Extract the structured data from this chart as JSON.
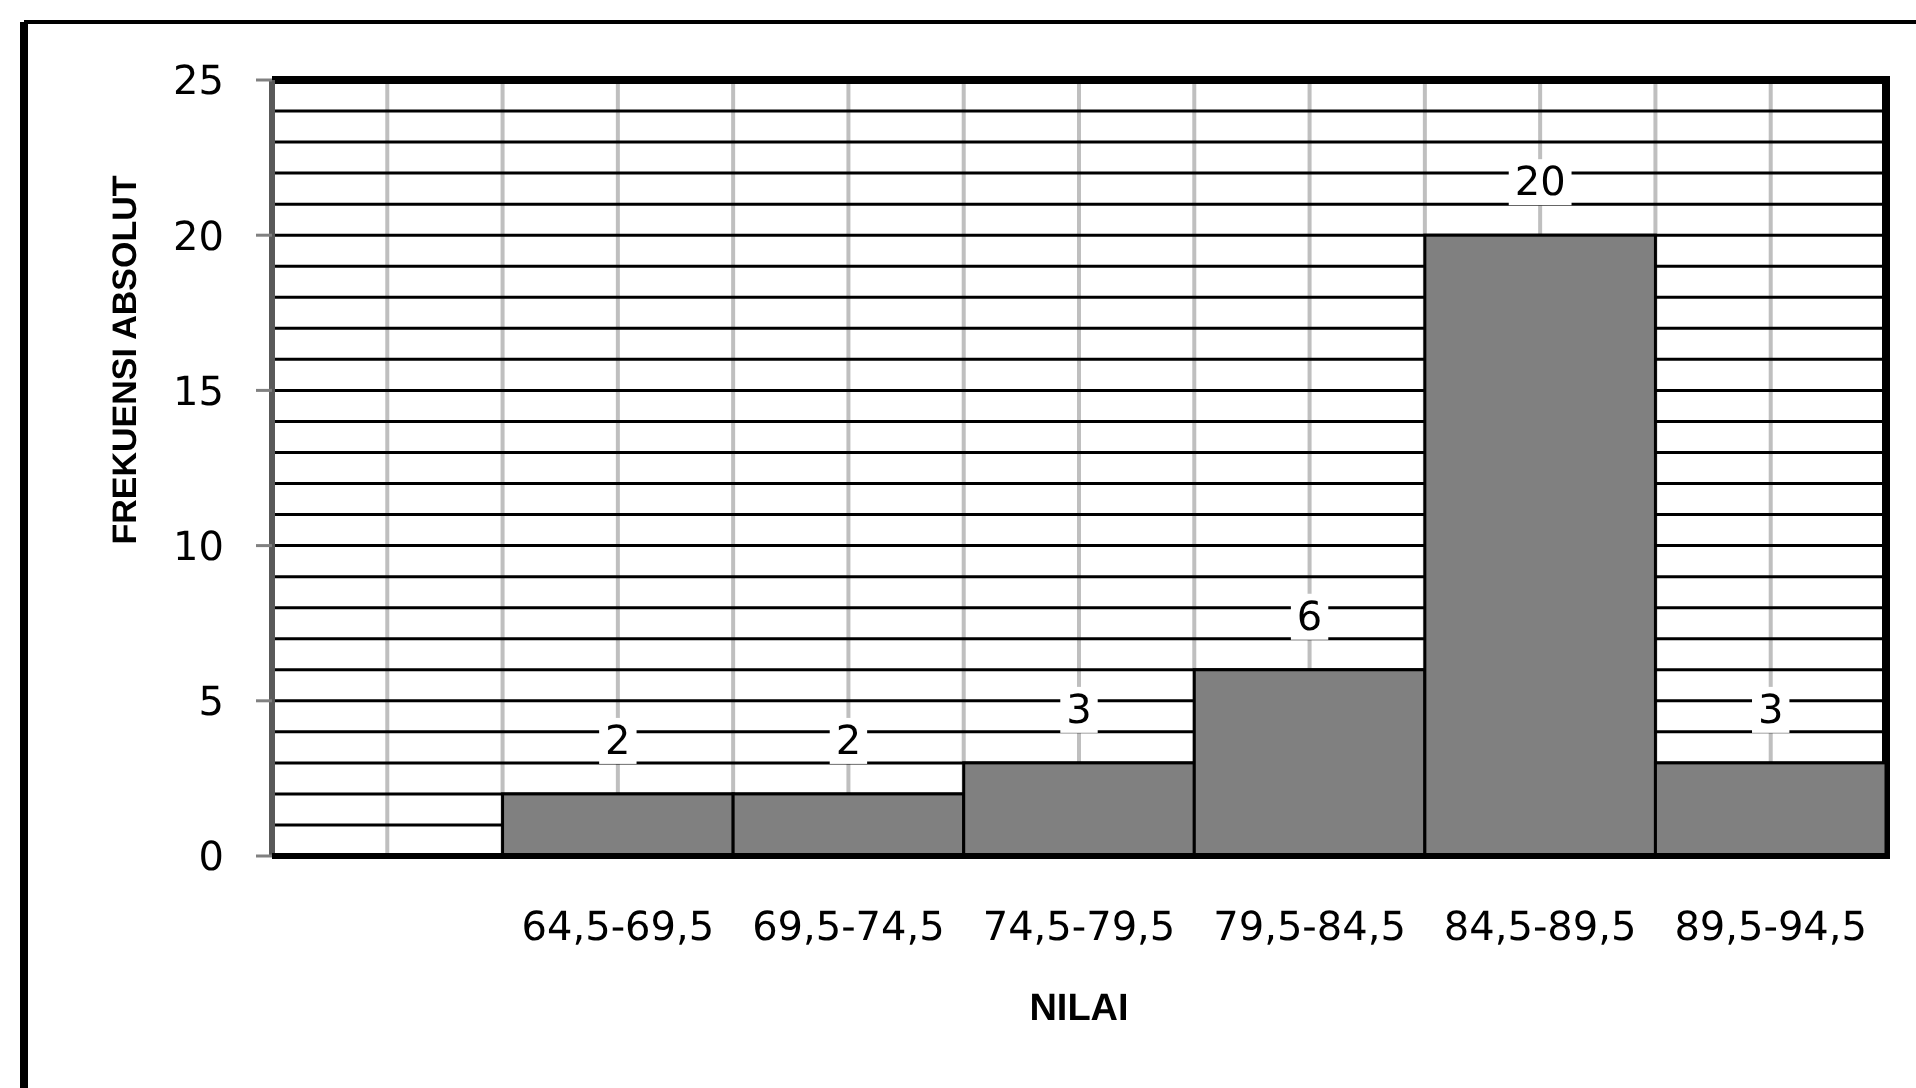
{
  "chart_data": {
    "type": "bar",
    "xlabel": "NILAI",
    "ylabel": "FREKUENSI ABSOLUT",
    "categories": [
      null,
      "64,5-69,5",
      "69,5-74,5",
      "74,5-79,5",
      "79,5-84,5",
      "84,5-89,5",
      "89,5-94,5"
    ],
    "values": [
      0,
      2,
      2,
      3,
      6,
      20,
      3
    ],
    "color": "#808080",
    "value_labels": [
      null,
      "2",
      "2",
      "3",
      "6",
      "20",
      "3"
    ],
    "ylim": [
      0,
      25
    ],
    "yticks": [
      0,
      {
        "value": 1,
        "label": null
      },
      {
        "value": 2,
        "label": null
      },
      {
        "value": 3,
        "label": null
      },
      {
        "value": 4,
        "label": null
      },
      5,
      {
        "value": 6,
        "label": null
      },
      {
        "value": 7,
        "label": null
      },
      {
        "value": 8,
        "label": null
      },
      {
        "value": 9,
        "label": null
      },
      10,
      {
        "value": 11,
        "label": null
      },
      {
        "value": 12,
        "label": null
      },
      {
        "value": 13,
        "label": null
      },
      {
        "value": 14,
        "label": null
      },
      15,
      {
        "value": 16,
        "label": null
      },
      {
        "value": 17,
        "label": null
      },
      {
        "value": 18,
        "label": null
      },
      {
        "value": 19,
        "label": null
      },
      20,
      {
        "value": 21,
        "label": null
      },
      {
        "value": 22,
        "label": null
      },
      {
        "value": 23,
        "label": null
      },
      {
        "value": 24,
        "label": null
      },
      25
    ],
    "grid": true
  }
}
